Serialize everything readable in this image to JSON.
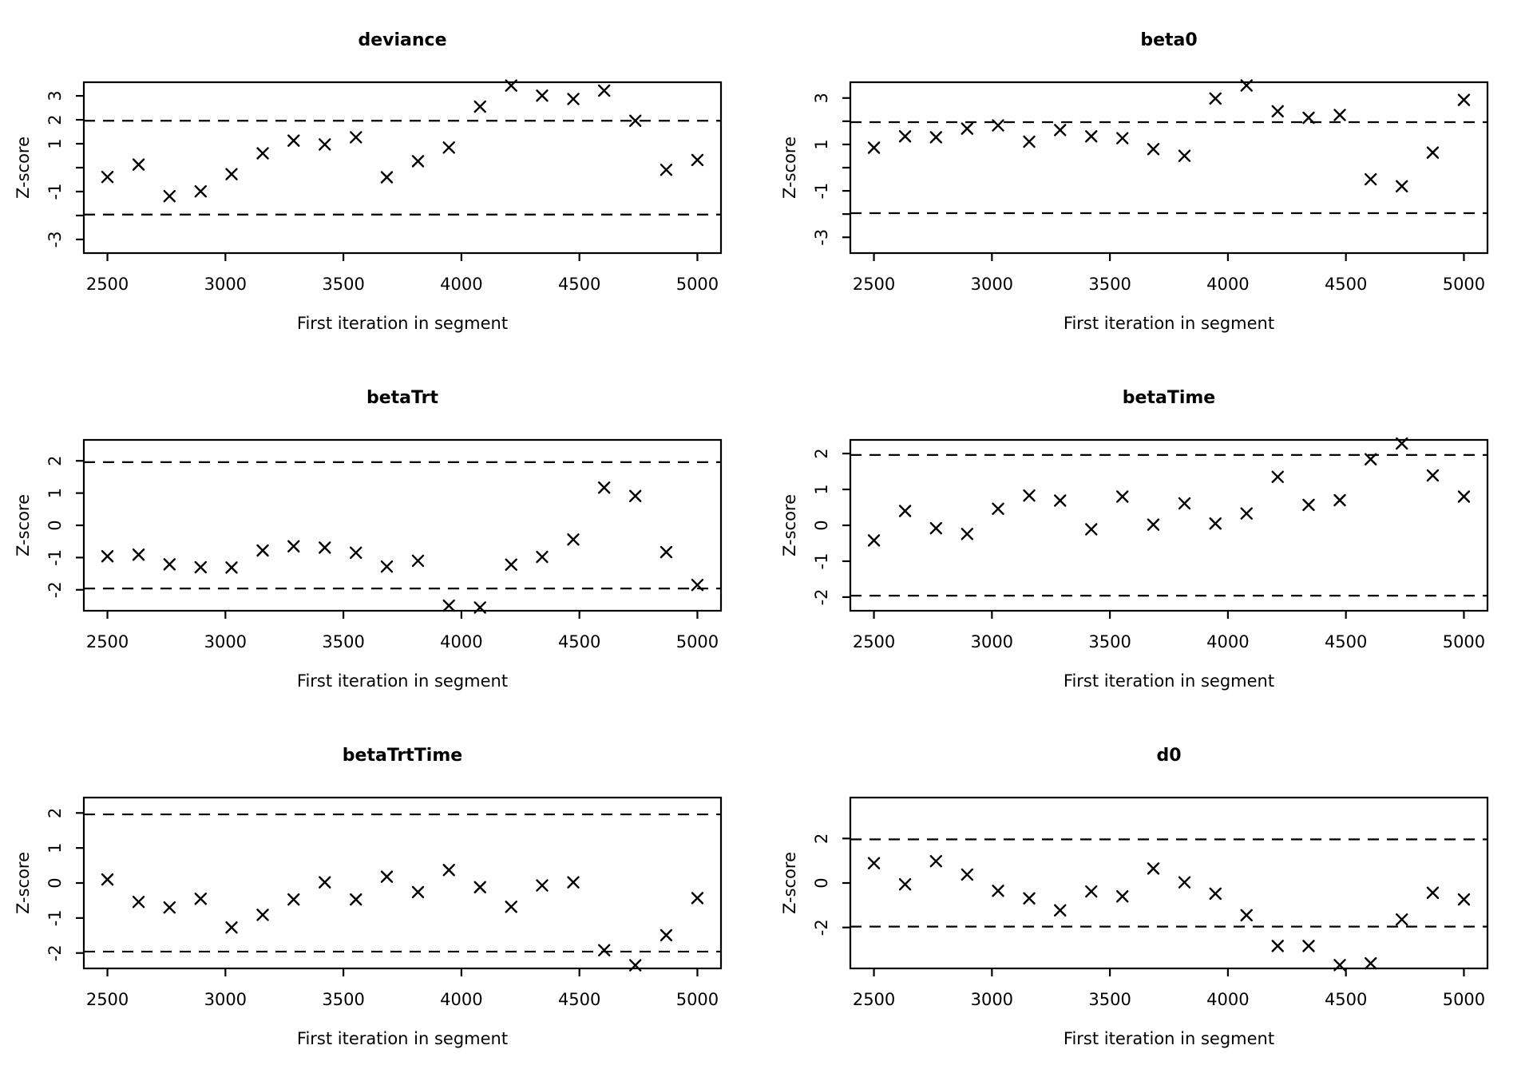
{
  "figure": {
    "background": "#ffffff",
    "foreground": "#000000",
    "layout": "2x3-grid-of-diagnostic-plots",
    "shared_x_label": "First iteration in segment",
    "shared_y_label": "Z-score",
    "significance_bounds": [
      -1.96,
      1.96
    ]
  },
  "chart_data": [
    {
      "type": "scatter",
      "title": "deviance",
      "xlabel": "First iteration in segment",
      "ylabel": "Z-score",
      "marker": "x-cross",
      "grid": "off",
      "row": 0,
      "col": 0,
      "xlim": [
        2400,
        5100
      ],
      "ylim": [
        -3.57,
        3.57
      ],
      "x_ticks": [
        2500,
        3000,
        3500,
        4000,
        4500,
        5000
      ],
      "y_ticks": [
        -3,
        -2,
        -1,
        0,
        1,
        2,
        3
      ],
      "y_tick_labels_shown": [
        -3,
        -1,
        1,
        2,
        3
      ],
      "hlines": [
        -1.96,
        1.96
      ],
      "x": [
        2500,
        2632,
        2763,
        2895,
        3026,
        3158,
        3289,
        3421,
        3553,
        3684,
        3816,
        3947,
        4079,
        4211,
        4342,
        4474,
        4605,
        4737,
        4868,
        5000
      ],
      "y": [
        -0.39,
        0.13,
        -1.19,
        -0.99,
        -0.27,
        0.6,
        1.13,
        0.97,
        1.27,
        -0.4,
        0.27,
        0.84,
        2.55,
        3.43,
        3.01,
        2.87,
        3.22,
        1.96,
        -0.09,
        0.32
      ]
    },
    {
      "type": "scatter",
      "title": "beta0",
      "xlabel": "First iteration in segment",
      "ylabel": "Z-score",
      "marker": "x-cross",
      "grid": "off",
      "row": 0,
      "col": 1,
      "xlim": [
        2400,
        5100
      ],
      "ylim": [
        -3.68,
        3.68
      ],
      "x_ticks": [
        2500,
        3000,
        3500,
        4000,
        4500,
        5000
      ],
      "y_ticks": [
        -3,
        -2,
        -1,
        0,
        1,
        2,
        3
      ],
      "y_tick_labels_shown": [
        -3,
        -1,
        1,
        3
      ],
      "hlines": [
        -1.96,
        1.96
      ],
      "x": [
        2500,
        2632,
        2763,
        2895,
        3026,
        3158,
        3289,
        3421,
        3553,
        3684,
        3816,
        3947,
        4079,
        4211,
        4342,
        4474,
        4605,
        4737,
        4868,
        5000
      ],
      "y": [
        0.86,
        1.35,
        1.31,
        1.68,
        1.82,
        1.12,
        1.62,
        1.35,
        1.27,
        0.8,
        0.51,
        2.98,
        3.54,
        2.43,
        2.15,
        2.27,
        -0.5,
        -0.8,
        0.65,
        2.92
      ]
    },
    {
      "type": "scatter",
      "title": "betaTrt",
      "xlabel": "First iteration in segment",
      "ylabel": "Z-score",
      "marker": "x-cross",
      "grid": "off",
      "row": 1,
      "col": 0,
      "xlim": [
        2400,
        5100
      ],
      "ylim": [
        -2.65,
        2.65
      ],
      "x_ticks": [
        2500,
        3000,
        3500,
        4000,
        4500,
        5000
      ],
      "y_ticks": [
        -2,
        -1,
        0,
        1,
        2
      ],
      "y_tick_labels_shown": [
        -2,
        -1,
        0,
        1,
        2
      ],
      "hlines": [
        -1.96,
        1.96
      ],
      "x": [
        2500,
        2632,
        2763,
        2895,
        3026,
        3158,
        3289,
        3421,
        3553,
        3684,
        3816,
        3947,
        4079,
        4211,
        4342,
        4474,
        4605,
        4737,
        4868,
        5000
      ],
      "y": [
        -0.96,
        -0.91,
        -1.21,
        -1.3,
        -1.31,
        -0.78,
        -0.65,
        -0.69,
        -0.85,
        -1.28,
        -1.1,
        -2.49,
        -2.55,
        -1.22,
        -0.98,
        -0.44,
        1.17,
        0.91,
        -0.83,
        -1.85
      ]
    },
    {
      "type": "scatter",
      "title": "betaTime",
      "xlabel": "First iteration in segment",
      "ylabel": "Z-score",
      "marker": "x-cross",
      "grid": "off",
      "row": 1,
      "col": 1,
      "xlim": [
        2400,
        5100
      ],
      "ylim": [
        -2.38,
        2.38
      ],
      "x_ticks": [
        2500,
        3000,
        3500,
        4000,
        4500,
        5000
      ],
      "y_ticks": [
        -2,
        -1,
        0,
        1,
        2
      ],
      "y_tick_labels_shown": [
        -2,
        -1,
        0,
        1,
        2
      ],
      "hlines": [
        -1.96,
        1.96
      ],
      "x": [
        2500,
        2632,
        2763,
        2895,
        3026,
        3158,
        3289,
        3421,
        3553,
        3684,
        3816,
        3947,
        4079,
        4211,
        4342,
        4474,
        4605,
        4737,
        4868,
        5000
      ],
      "y": [
        -0.42,
        0.4,
        -0.08,
        -0.24,
        0.46,
        0.83,
        0.69,
        -0.11,
        0.8,
        0.02,
        0.61,
        0.05,
        0.33,
        1.35,
        0.57,
        0.7,
        1.84,
        2.28,
        1.39,
        0.8
      ]
    },
    {
      "type": "scatter",
      "title": "betaTrtTime",
      "xlabel": "First iteration in segment",
      "ylabel": "Z-score",
      "marker": "x-cross",
      "grid": "off",
      "row": 2,
      "col": 0,
      "xlim": [
        2400,
        5100
      ],
      "ylim": [
        -2.44,
        2.44
      ],
      "x_ticks": [
        2500,
        3000,
        3500,
        4000,
        4500,
        5000
      ],
      "y_ticks": [
        -2,
        -1,
        0,
        1,
        2
      ],
      "y_tick_labels_shown": [
        -2,
        -1,
        0,
        1,
        2
      ],
      "hlines": [
        -1.96,
        1.96
      ],
      "x": [
        2500,
        2632,
        2763,
        2895,
        3026,
        3158,
        3289,
        3421,
        3553,
        3684,
        3816,
        3947,
        4079,
        4211,
        4342,
        4474,
        4605,
        4737,
        4868,
        5000
      ],
      "y": [
        0.1,
        -0.54,
        -0.7,
        -0.45,
        -1.27,
        -0.91,
        -0.47,
        0.02,
        -0.47,
        0.18,
        -0.26,
        0.37,
        -0.12,
        -0.68,
        -0.07,
        0.02,
        -1.92,
        -2.35,
        -1.49,
        -0.43
      ]
    },
    {
      "type": "scatter",
      "title": "d0",
      "xlabel": "First iteration in segment",
      "ylabel": "Z-score",
      "marker": "x-cross",
      "grid": "off",
      "row": 2,
      "col": 1,
      "xlim": [
        2400,
        5100
      ],
      "ylim": [
        -3.84,
        3.84
      ],
      "x_ticks": [
        2500,
        3000,
        3500,
        4000,
        4500,
        5000
      ],
      "y_ticks": [
        -2,
        0,
        2
      ],
      "y_tick_labels_shown": [
        -2,
        0,
        2
      ],
      "hlines": [
        -1.96,
        1.96
      ],
      "x": [
        2500,
        2632,
        2763,
        2895,
        3026,
        3158,
        3289,
        3421,
        3553,
        3684,
        3816,
        3947,
        4079,
        4211,
        4342,
        4474,
        4605,
        4737,
        4868,
        5000
      ],
      "y": [
        0.89,
        -0.06,
        0.98,
        0.38,
        -0.35,
        -0.69,
        -1.23,
        -0.38,
        -0.6,
        0.65,
        0.03,
        -0.48,
        -1.45,
        -2.83,
        -2.83,
        -3.69,
        -3.61,
        -1.64,
        -0.44,
        -0.74
      ]
    }
  ]
}
